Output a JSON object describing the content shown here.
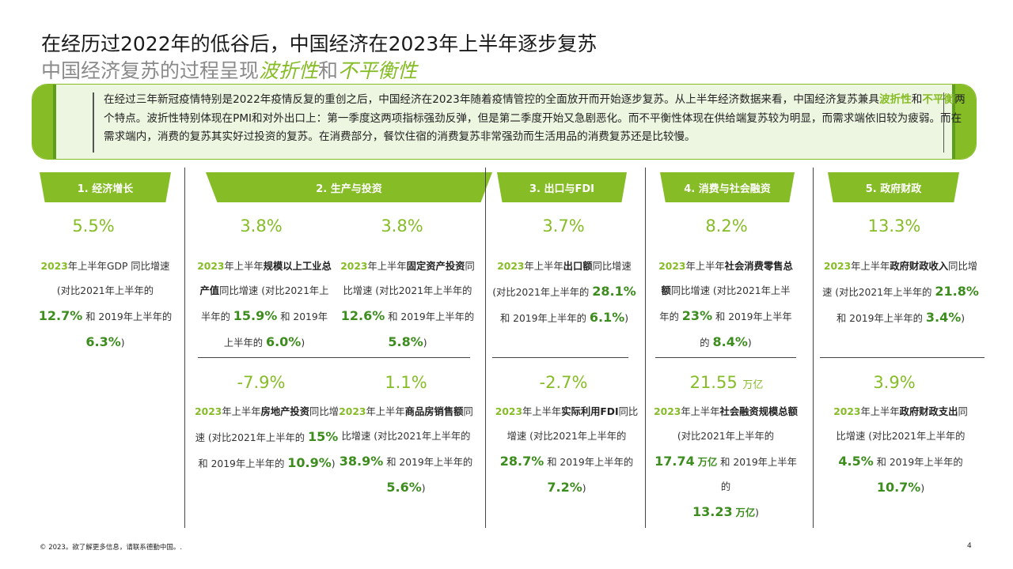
{
  "title": "在经历过2022年的低谷后，中国经济在2023年上半年逐步复苏",
  "subtitle": {
    "prefix": "中国经济复苏的过程呈现",
    "hl1": "波折性",
    "mid": "和",
    "hl2": "不平衡性"
  },
  "intro": {
    "p1": "在经过三年新冠疫情特别是2022年疫情反复的重创之后，中国经济在2023年随着疫情管控的全面放开而开始逐步复苏。从上半年经济数据来看，中国经济复苏兼具",
    "hl1": "波折性",
    "and": "和",
    "hl2": "不平衡",
    "p2": "两个特点。波折性特别体现在PMI和对外出口上：第一季度这两项指标强劲反弹，但是第二季度开始又急剧恶化。而不平衡性体现在供给端复苏较为明显，而需求端依旧较为疲弱。而在需求端内，消费的复苏其实好过投资的复苏。在消费部分，餐饮住宿的消费复苏非常强劲而生活用品的消费复苏还是比较慢。"
  },
  "tabs": [
    "1. 经济增长",
    "2. 生产与投资",
    "3. 出口与FDI",
    "4. 消费与社会融资",
    "5. 政府财政"
  ],
  "growth": {
    "stat": "5.5%",
    "l1y": "2023",
    "l1": "年上半年GDP 同比增速",
    "l2": "(对比2021年上半年的",
    "v1": "12.7%",
    "l3": " 和 2019年上半年的",
    "v2": "6.3%",
    "l4": ")"
  },
  "industrial": {
    "stat": "3.8%",
    "y": "2023",
    "a": "年上半年",
    "b": "规模以上工业总产值",
    "c": "同比增速 (对比2021年上半年的 ",
    "v1": "15.9%",
    "d": " 和 2019年上半年的 ",
    "v2": "6.0%",
    "e": ")"
  },
  "fixed_invest": {
    "stat": "3.8%",
    "y": "2023",
    "a": "年上半年",
    "b": "固定资产投资",
    "c": "同比增速 (对比2021年上半年的 ",
    "v1": "12.6%",
    "d": " 和 2019年上半年的 ",
    "v2": "5.8%",
    "e": ")"
  },
  "realestate": {
    "stat": "-7.9%",
    "y": "2023",
    "a": "年上半年",
    "b": "房地产投资",
    "c": "同比增速 (对比2021年上半年的 ",
    "v1": "15%",
    "d": " 和 2019年上半年的 ",
    "v2": "10.9%",
    "e": ")"
  },
  "housing_sales": {
    "stat": "1.1%",
    "y": "2023",
    "a": "年上半年",
    "b": "商品房销售额",
    "c": "同比增速 (对比2021年上半年的 ",
    "v1": "38.9%",
    "d": " 和 2019年上半年的 ",
    "v2": "5.6%",
    "e": ")"
  },
  "export": {
    "stat": "3.7%",
    "y": "2023",
    "a": "年上半年",
    "b": "出口额",
    "c": "同比增速",
    "c2": "(对比2021年上半年的 ",
    "v1": "28.1%",
    "d": " 和 2019年上半年的 ",
    "v2": "6.1%",
    "e": ")"
  },
  "fdi": {
    "stat": "-2.7%",
    "y": "2023",
    "a": "年上半年",
    "b": "实际利用FDI",
    "c": "同比增速 (对比2021年上半年的",
    "v1": "28.7%",
    "d": " 和 2019年上半年的 ",
    "v2": "7.2%",
    "e": ")"
  },
  "retail": {
    "stat": "8.2%",
    "y": "2023",
    "a": "年上半年",
    "b": "社会消费零售总额",
    "c": "同比增速 (对比2021年上半年的 ",
    "v1": "23%",
    "d": " 和 2019年上半年的 ",
    "v2": "8.4%",
    "e": ")"
  },
  "financing": {
    "stat": "21.55",
    "unit": "万亿",
    "y": "2023",
    "a": "年上半年",
    "b": "社会融资规模总额",
    "c": "(对比2021年上半年的",
    "v1": "17.74",
    "u1": "万亿",
    "d": " 和 2019年上半年的",
    "v2": "13.23",
    "u2": "万亿",
    "e": ")"
  },
  "fiscal_rev": {
    "stat": "13.3%",
    "y": "2023",
    "a": "年上半年",
    "b": "政府财政收入",
    "c": "同比增速 (对比2021年上半年的 ",
    "v1": "21.8%",
    "d": " 和 2019年上半年的 ",
    "v2": "3.4%",
    "e": ")"
  },
  "fiscal_exp": {
    "stat": "3.9%",
    "y": "2023",
    "a": "年上半年",
    "b": "政府财政支出",
    "c": "同比增速 (对比2021年上半年的 ",
    "v1": "4.5%",
    "d": " 和 2019年上半年的 ",
    "v2": "10.7%",
    "e": ")"
  },
  "footer": "© 2023。欲了解更多信息，请联系德勤中国。.",
  "page": "4",
  "colors": {
    "accent": "#86bc25",
    "dark_green": "#3d8c1e",
    "panel_bg": "#edf6e0"
  }
}
